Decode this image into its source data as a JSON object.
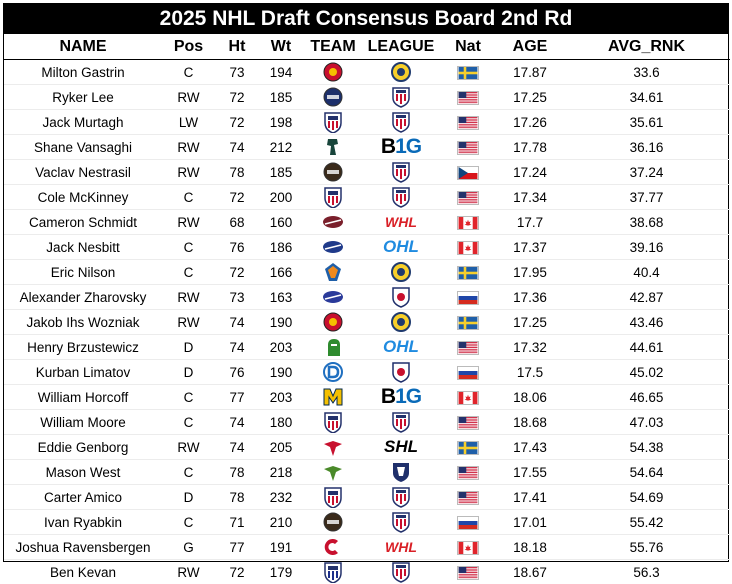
{
  "title": "2025 NHL Draft Consensus Board 2nd Rd",
  "columns": [
    "NAME",
    "Pos",
    "Ht",
    "Wt",
    "TEAM",
    "LEAGUE",
    "Nat",
    "AGE",
    "AVG_RNK"
  ],
  "colors": {
    "sweden_blue": "#1f5fa8",
    "sweden_yellow": "#f7cf2a",
    "usa_red": "#c8102e",
    "usa_blue": "#23316b",
    "canada_red": "#e0242b",
    "russia_blue": "#1f46a8",
    "czech_blue": "#11457e",
    "big_ten_blue": "#0a6ab8",
    "ohl_blue": "#1f8be0",
    "whl_red": "#d91f26",
    "usa_hockey_red": "#c8102e"
  },
  "chart_data": {
    "type": "table",
    "title": "2025 NHL Draft Consensus Board 2nd Rd",
    "columns": [
      "NAME",
      "Pos",
      "Ht",
      "Wt",
      "TEAM",
      "LEAGUE",
      "Nat",
      "AGE",
      "AVG_RNK"
    ],
    "rows": [
      {
        "name": "Milton Gastrin",
        "pos": "C",
        "ht": "73",
        "wt": "194",
        "team_icon": "modo-logo",
        "team_color": "#c8102e",
        "league": "shl-junior",
        "league_label": "",
        "nat": "sweden",
        "age": "17.87",
        "avg_rnk": "33.6"
      },
      {
        "name": "Ryker Lee",
        "pos": "RW",
        "ht": "72",
        "wt": "185",
        "team_icon": "madison-capitols-logo",
        "team_color": "#1c2f6b",
        "league": "usa-hockey",
        "league_label": "",
        "nat": "usa",
        "age": "17.25",
        "avg_rnk": "34.61"
      },
      {
        "name": "Jack Murtagh",
        "pos": "LW",
        "ht": "72",
        "wt": "198",
        "team_icon": "usntdp-logo",
        "team_color": "#c8102e",
        "league": "usa-hockey",
        "league_label": "",
        "nat": "usa",
        "age": "17.26",
        "avg_rnk": "35.61"
      },
      {
        "name": "Shane Vansaghi",
        "pos": "RW",
        "ht": "74",
        "wt": "212",
        "team_icon": "michigan-state-logo",
        "team_color": "#18453b",
        "league": "big-ten",
        "league_label": "B1G",
        "nat": "usa",
        "age": "17.78",
        "avg_rnk": "36.16"
      },
      {
        "name": "Vaclav Nestrasil",
        "pos": "RW",
        "ht": "78",
        "wt": "185",
        "team_icon": "muskegon-lumberjacks-logo",
        "team_color": "#3a2a1a",
        "league": "usa-hockey",
        "league_label": "",
        "nat": "czech",
        "age": "17.24",
        "avg_rnk": "37.24"
      },
      {
        "name": "Cole McKinney",
        "pos": "C",
        "ht": "72",
        "wt": "200",
        "team_icon": "usntdp-logo",
        "team_color": "#c8102e",
        "league": "usa-hockey",
        "league_label": "",
        "nat": "usa",
        "age": "17.34",
        "avg_rnk": "37.77"
      },
      {
        "name": "Cameron Schmidt",
        "pos": "RW",
        "ht": "68",
        "wt": "160",
        "team_icon": "vancouver-giants-logo",
        "team_color": "#7a1f2b",
        "league": "whl",
        "league_label": "WHL",
        "nat": "canada",
        "age": "17.7",
        "avg_rnk": "38.68"
      },
      {
        "name": "Jack Nesbitt",
        "pos": "C",
        "ht": "76",
        "wt": "186",
        "team_icon": "windsor-spitfires-logo",
        "team_color": "#1f3a8a",
        "league": "ohl",
        "league_label": "OHL",
        "nat": "canada",
        "age": "17.37",
        "avg_rnk": "39.16"
      },
      {
        "name": "Eric Nilson",
        "pos": "C",
        "ht": "72",
        "wt": "166",
        "team_icon": "djurgarden-logo",
        "team_color": "#f08a1c",
        "league": "shl-junior",
        "league_label": "",
        "nat": "sweden",
        "age": "17.95",
        "avg_rnk": "40.4"
      },
      {
        "name": "Alexander Zharovsky",
        "pos": "RW",
        "ht": "73",
        "wt": "163",
        "team_icon": "tolpar-logo",
        "team_color": "#2a3a9a",
        "league": "mhl",
        "league_label": "",
        "nat": "russia",
        "age": "17.36",
        "avg_rnk": "42.87"
      },
      {
        "name": "Jakob Ihs Wozniak",
        "pos": "RW",
        "ht": "74",
        "wt": "190",
        "team_icon": "lulea-logo",
        "team_color": "#c8102e",
        "league": "shl-junior",
        "league_label": "",
        "nat": "sweden",
        "age": "17.25",
        "avg_rnk": "43.46"
      },
      {
        "name": "Henry Brzustewicz",
        "pos": "D",
        "ht": "74",
        "wt": "203",
        "team_icon": "london-knights-logo",
        "team_color": "#2e8b2e",
        "league": "ohl",
        "league_label": "OHL",
        "nat": "usa",
        "age": "17.32",
        "avg_rnk": "44.61"
      },
      {
        "name": "Kurban Limatov",
        "pos": "D",
        "ht": "76",
        "wt": "190",
        "team_icon": "dynamo-logo",
        "team_color": "#1f6fc0",
        "league": "mhl",
        "league_label": "",
        "nat": "russia",
        "age": "17.5",
        "avg_rnk": "45.02"
      },
      {
        "name": "William Horcoff",
        "pos": "C",
        "ht": "77",
        "wt": "203",
        "team_icon": "michigan-logo",
        "team_color": "#f5c000",
        "league": "big-ten",
        "league_label": "B1G",
        "nat": "canada",
        "age": "18.06",
        "avg_rnk": "46.65"
      },
      {
        "name": "William Moore",
        "pos": "C",
        "ht": "74",
        "wt": "180",
        "team_icon": "usntdp-logo",
        "team_color": "#c8102e",
        "league": "usa-hockey",
        "league_label": "",
        "nat": "usa",
        "age": "18.68",
        "avg_rnk": "47.03"
      },
      {
        "name": "Eddie Genborg",
        "pos": "RW",
        "ht": "74",
        "wt": "205",
        "team_icon": "timra-logo",
        "team_color": "#c8102e",
        "league": "shl",
        "league_label": "SHL",
        "nat": "sweden",
        "age": "17.43",
        "avg_rnk": "54.38"
      },
      {
        "name": "Mason West",
        "pos": "C",
        "ht": "78",
        "wt": "218",
        "team_icon": "fargo-force-logo",
        "team_color": "#4a8a2a",
        "league": "ushl",
        "league_label": "",
        "nat": "usa",
        "age": "17.55",
        "avg_rnk": "54.64"
      },
      {
        "name": "Carter Amico",
        "pos": "D",
        "ht": "78",
        "wt": "232",
        "team_icon": "usntdp-logo",
        "team_color": "#c8102e",
        "league": "usa-hockey",
        "league_label": "",
        "nat": "usa",
        "age": "17.41",
        "avg_rnk": "54.69"
      },
      {
        "name": "Ivan Ryabkin",
        "pos": "C",
        "ht": "71",
        "wt": "210",
        "team_icon": "muskegon-lumberjacks-logo",
        "team_color": "#3a2a1a",
        "league": "usa-hockey",
        "league_label": "",
        "nat": "russia",
        "age": "17.01",
        "avg_rnk": "55.42"
      },
      {
        "name": "Joshua Ravensbergen",
        "pos": "G",
        "ht": "77",
        "wt": "191",
        "team_icon": "prince-george-cougars-logo",
        "team_color": "#c8102e",
        "league": "whl",
        "league_label": "WHL",
        "nat": "canada",
        "age": "18.18",
        "avg_rnk": "55.76"
      },
      {
        "name": "Ben Kevan",
        "pos": "RW",
        "ht": "72",
        "wt": "179",
        "team_icon": "des-moines-logo",
        "team_color": "#1c2f8a",
        "league": "usa-hockey",
        "league_label": "",
        "nat": "usa",
        "age": "18.67",
        "avg_rnk": "56.3"
      }
    ]
  }
}
